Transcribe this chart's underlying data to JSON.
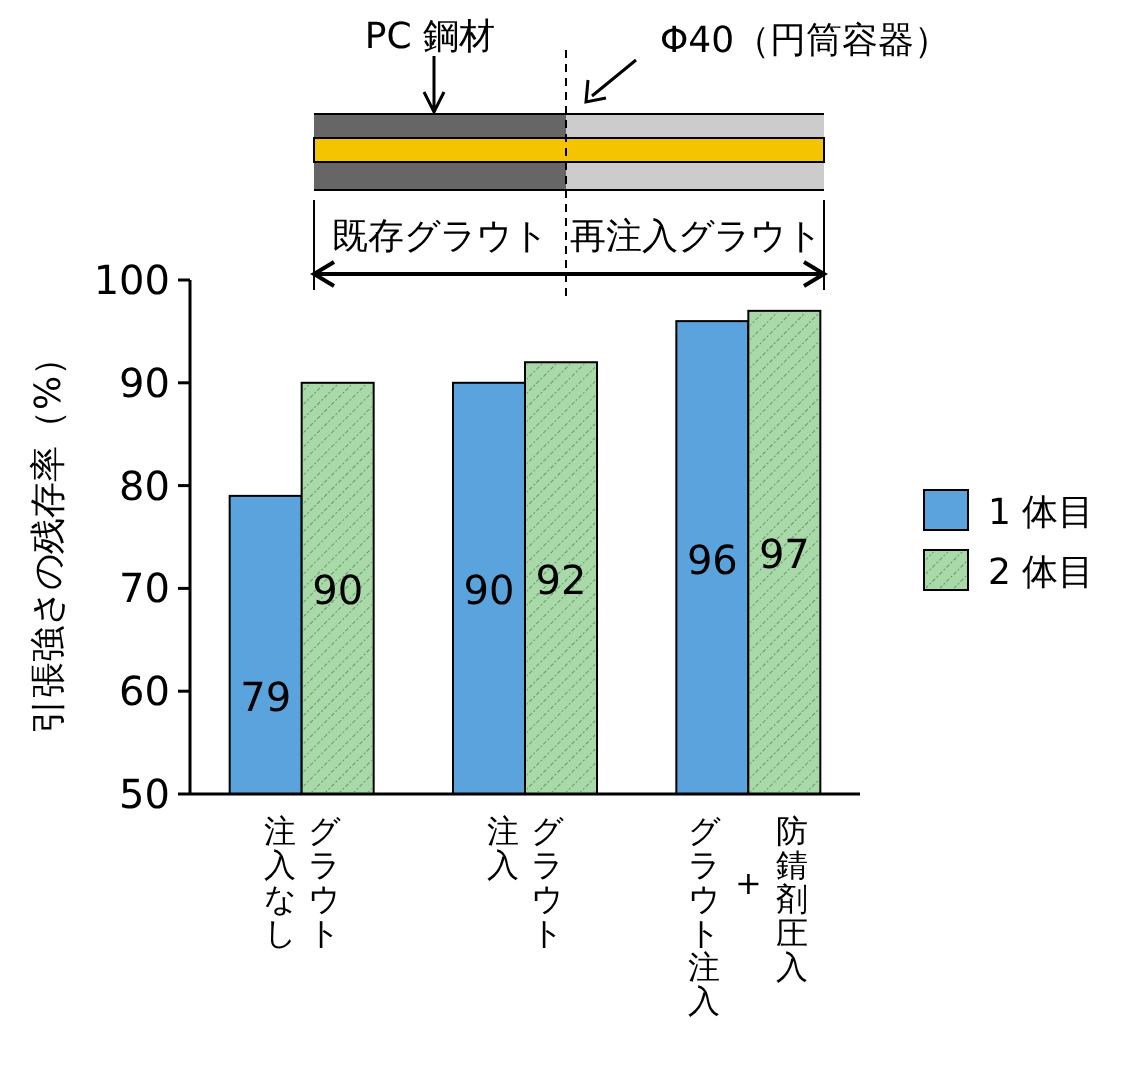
{
  "chart_data": {
    "type": "bar",
    "ylabel": "引張強さの残存率（%）",
    "categories": [
      "注入なしグラウト",
      "注入グラウト",
      "グラウト注入+防錆剤圧入"
    ],
    "series": [
      {
        "name": "1 体目",
        "color": "#5ba3dc",
        "values": [
          79,
          90,
          96
        ]
      },
      {
        "name": "2 体目",
        "color": "#a9d9a9",
        "values": [
          90,
          92,
          97
        ]
      }
    ],
    "ylim": [
      50,
      100
    ],
    "yticks": [
      50,
      60,
      70,
      80,
      90,
      100
    ],
    "data_labels": true,
    "legend": "right",
    "annotations": [
      "PC 鋼材",
      "Φ40（円筒容器）",
      "既存グラウト",
      "再注入グラウト"
    ]
  }
}
